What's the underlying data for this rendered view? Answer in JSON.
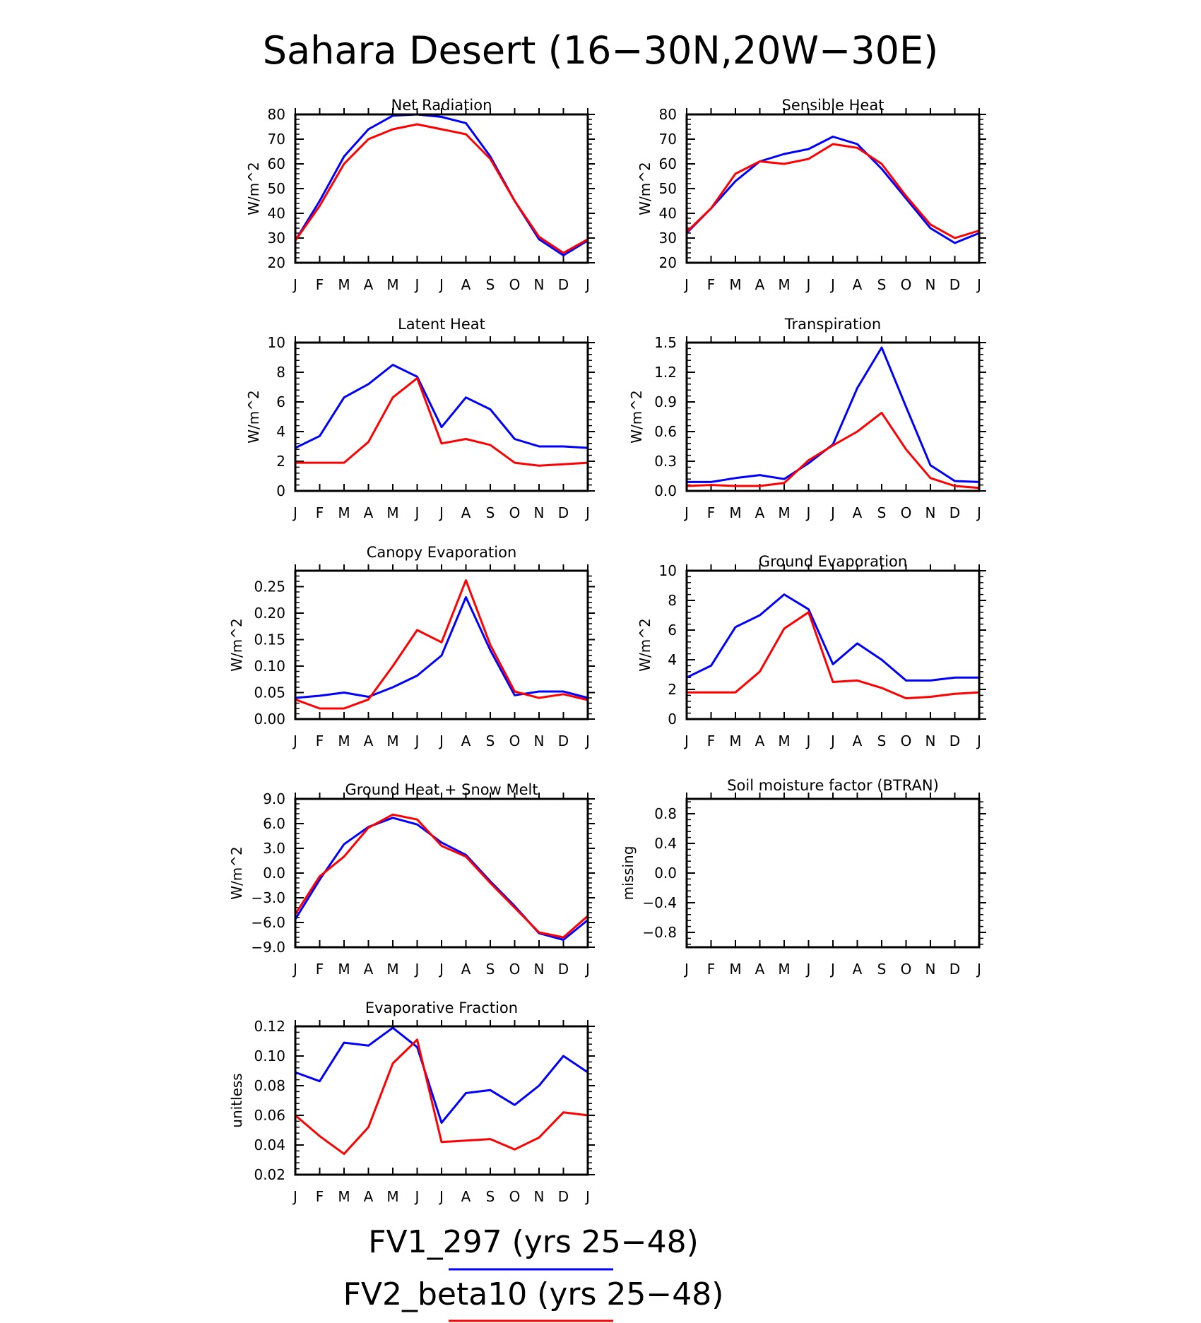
{
  "figure_title": "Sahara Desert (16−30N,20W−30E)",
  "colors": {
    "series_1": "#0000ff",
    "series_2": "#ff0000"
  },
  "legend": [
    {
      "label": "FV1_297 (yrs 25−48)",
      "color": "#0000ff"
    },
    {
      "label": "FV2_beta10 (yrs 25−48)",
      "color": "#ff0000"
    }
  ],
  "chart_data": [
    {
      "type": "line",
      "title": "Net Radiation",
      "ylabel": "W/m^2",
      "categories": [
        "J",
        "F",
        "M",
        "A",
        "M",
        "J",
        "J",
        "A",
        "S",
        "O",
        "N",
        "D",
        "J"
      ],
      "ylim": [
        20,
        80
      ],
      "yticks": [
        20,
        30,
        40,
        50,
        60,
        70,
        80
      ],
      "ytick_labels": [
        "20",
        "30",
        "40",
        "50",
        "60",
        "70",
        "80"
      ],
      "series": [
        {
          "name": "FV1_297 (yrs 25−48)",
          "color": "#0000ff",
          "values": [
            29,
            45,
            63,
            74,
            79.5,
            80,
            79,
            76.5,
            63,
            45,
            29.5,
            23,
            29
          ]
        },
        {
          "name": "FV2_beta10 (yrs 25−48)",
          "color": "#ff0000",
          "values": [
            29,
            43,
            60,
            70,
            74,
            76,
            74,
            72,
            62,
            45,
            30.5,
            24,
            29.5
          ]
        }
      ]
    },
    {
      "type": "line",
      "title": "Sensible Heat",
      "ylabel": "W/m^2",
      "categories": [
        "J",
        "F",
        "M",
        "A",
        "M",
        "J",
        "J",
        "A",
        "S",
        "O",
        "N",
        "D",
        "J"
      ],
      "ylim": [
        20,
        80
      ],
      "yticks": [
        20,
        30,
        40,
        50,
        60,
        70,
        80
      ],
      "ytick_labels": [
        "20",
        "30",
        "40",
        "50",
        "60",
        "70",
        "80"
      ],
      "series": [
        {
          "name": "FV1_297 (yrs 25−48)",
          "color": "#0000ff",
          "values": [
            32,
            42,
            53,
            61,
            64,
            66,
            71,
            68,
            58,
            46,
            34,
            28,
            32
          ]
        },
        {
          "name": "FV2_beta10 (yrs 25−48)",
          "color": "#ff0000",
          "values": [
            32.5,
            42,
            56,
            61,
            60,
            62,
            68,
            66.5,
            60,
            47,
            35.5,
            30,
            33
          ]
        }
      ]
    },
    {
      "type": "line",
      "title": "Latent Heat",
      "ylabel": "W/m^2",
      "categories": [
        "J",
        "F",
        "M",
        "A",
        "M",
        "J",
        "J",
        "A",
        "S",
        "O",
        "N",
        "D",
        "J"
      ],
      "ylim": [
        0,
        10
      ],
      "yticks": [
        0,
        2,
        4,
        6,
        8,
        10
      ],
      "ytick_labels": [
        "0",
        "2",
        "4",
        "6",
        "8",
        "10"
      ],
      "series": [
        {
          "name": "FV1_297 (yrs 25−48)",
          "color": "#0000ff",
          "values": [
            2.9,
            3.7,
            6.3,
            7.2,
            8.5,
            7.7,
            4.3,
            6.3,
            5.5,
            3.5,
            3.0,
            3.0,
            2.9
          ]
        },
        {
          "name": "FV2_beta10 (yrs 25−48)",
          "color": "#ff0000",
          "values": [
            1.9,
            1.9,
            1.9,
            3.3,
            6.3,
            7.6,
            3.2,
            3.5,
            3.1,
            1.9,
            1.7,
            1.8,
            1.9
          ]
        }
      ]
    },
    {
      "type": "line",
      "title": "Transpiration",
      "ylabel": "W/m^2",
      "categories": [
        "J",
        "F",
        "M",
        "A",
        "M",
        "J",
        "J",
        "A",
        "S",
        "O",
        "N",
        "D",
        "J"
      ],
      "ylim": [
        0,
        1.5
      ],
      "yticks": [
        0,
        0.3,
        0.6,
        0.9,
        1.2,
        1.5
      ],
      "ytick_labels": [
        "0.0",
        "0.3",
        "0.6",
        "0.9",
        "1.2",
        "1.5"
      ],
      "series": [
        {
          "name": "FV1_297 (yrs 25−48)",
          "color": "#0000ff",
          "values": [
            0.09,
            0.09,
            0.13,
            0.16,
            0.12,
            0.28,
            0.47,
            1.04,
            1.45,
            0.85,
            0.26,
            0.1,
            0.09
          ]
        },
        {
          "name": "FV2_beta10 (yrs 25−48)",
          "color": "#ff0000",
          "values": [
            0.05,
            0.06,
            0.05,
            0.05,
            0.08,
            0.31,
            0.46,
            0.6,
            0.79,
            0.42,
            0.13,
            0.05,
            0.03
          ]
        }
      ]
    },
    {
      "type": "line",
      "title": "Canopy Evaporation",
      "ylabel": "W/m^2",
      "categories": [
        "J",
        "F",
        "M",
        "A",
        "M",
        "J",
        "J",
        "A",
        "S",
        "O",
        "N",
        "D",
        "J"
      ],
      "ylim": [
        0,
        0.28
      ],
      "yticks": [
        0,
        0.05,
        0.1,
        0.15,
        0.2,
        0.25
      ],
      "ytick_labels": [
        "0.00",
        "0.05",
        "0.10",
        "0.15",
        "0.20",
        "0.25"
      ],
      "series": [
        {
          "name": "FV1_297 (yrs 25−48)",
          "color": "#0000ff",
          "values": [
            0.04,
            0.044,
            0.05,
            0.042,
            0.06,
            0.082,
            0.12,
            0.23,
            0.13,
            0.045,
            0.052,
            0.052,
            0.04
          ]
        },
        {
          "name": "FV2_beta10 (yrs 25−48)",
          "color": "#ff0000",
          "values": [
            0.037,
            0.02,
            0.02,
            0.037,
            0.1,
            0.168,
            0.145,
            0.262,
            0.14,
            0.052,
            0.04,
            0.047,
            0.036
          ]
        }
      ]
    },
    {
      "type": "line",
      "title": "Ground Evaporation",
      "ylabel": "W/m^2",
      "categories": [
        "J",
        "F",
        "M",
        "A",
        "M",
        "J",
        "J",
        "A",
        "S",
        "O",
        "N",
        "D",
        "J"
      ],
      "ylim": [
        0,
        10
      ],
      "yticks": [
        0,
        2,
        4,
        6,
        8,
        10
      ],
      "ytick_labels": [
        "0",
        "2",
        "4",
        "6",
        "8",
        "10"
      ],
      "series": [
        {
          "name": "FV1_297 (yrs 25−48)",
          "color": "#0000ff",
          "values": [
            2.8,
            3.6,
            6.2,
            7.0,
            8.4,
            7.4,
            3.7,
            5.1,
            4.0,
            2.6,
            2.6,
            2.8,
            2.8
          ]
        },
        {
          "name": "FV2_beta10 (yrs 25−48)",
          "color": "#ff0000",
          "values": [
            1.8,
            1.8,
            1.8,
            3.2,
            6.1,
            7.2,
            2.5,
            2.6,
            2.1,
            1.4,
            1.5,
            1.7,
            1.8
          ]
        }
      ]
    },
    {
      "type": "line",
      "title": "Ground Heat + Snow Melt",
      "ylabel": "W/m^2",
      "categories": [
        "J",
        "F",
        "M",
        "A",
        "M",
        "J",
        "J",
        "A",
        "S",
        "O",
        "N",
        "D",
        "J"
      ],
      "ylim": [
        -9,
        9
      ],
      "yticks": [
        -9,
        -6,
        -3,
        0,
        3,
        6,
        9
      ],
      "ytick_labels": [
        "−9.0",
        "−6.0",
        "−3.0",
        "0.0",
        "3.0",
        "6.0",
        "9.0"
      ],
      "series": [
        {
          "name": "FV1_297 (yrs 25−48)",
          "color": "#0000ff",
          "values": [
            -5.6,
            -0.8,
            3.5,
            5.6,
            6.7,
            5.9,
            3.7,
            2.2,
            -1.0,
            -4.0,
            -7.3,
            -8.1,
            -5.7
          ]
        },
        {
          "name": "FV2_beta10 (yrs 25−48)",
          "color": "#ff0000",
          "values": [
            -5.0,
            -0.4,
            2.0,
            5.5,
            7.1,
            6.5,
            3.3,
            2.0,
            -1.2,
            -4.2,
            -7.2,
            -7.8,
            -5.2
          ]
        }
      ]
    },
    {
      "type": "line",
      "title": "Soil moisture factor (BTRAN)",
      "ylabel": "missing",
      "categories": [
        "J",
        "F",
        "M",
        "A",
        "M",
        "J",
        "J",
        "A",
        "S",
        "O",
        "N",
        "D",
        "J"
      ],
      "ylim": [
        -1,
        1
      ],
      "yticks": [
        -0.8,
        -0.4,
        0,
        0.4,
        0.8
      ],
      "ytick_labels": [
        "−0.8",
        "−0.4",
        "0.0",
        "0.4",
        "0.8"
      ],
      "series": []
    },
    {
      "type": "line",
      "title": "Evaporative Fraction",
      "ylabel": "unitless",
      "categories": [
        "J",
        "F",
        "M",
        "A",
        "M",
        "J",
        "J",
        "A",
        "S",
        "O",
        "N",
        "D",
        "J"
      ],
      "ylim": [
        0.02,
        0.12
      ],
      "yticks": [
        0.02,
        0.04,
        0.06,
        0.08,
        0.1,
        0.12
      ],
      "ytick_labels": [
        "0.02",
        "0.04",
        "0.06",
        "0.08",
        "0.10",
        "0.12"
      ],
      "series": [
        {
          "name": "FV1_297 (yrs 25−48)",
          "color": "#0000ff",
          "values": [
            0.089,
            0.083,
            0.109,
            0.107,
            0.119,
            0.106,
            0.055,
            0.075,
            0.077,
            0.067,
            0.08,
            0.1,
            0.089
          ]
        },
        {
          "name": "FV2_beta10 (yrs 25−48)",
          "color": "#ff0000",
          "values": [
            0.06,
            0.046,
            0.034,
            0.052,
            0.095,
            0.111,
            0.042,
            0.043,
            0.044,
            0.037,
            0.045,
            0.062,
            0.06
          ]
        }
      ]
    }
  ]
}
